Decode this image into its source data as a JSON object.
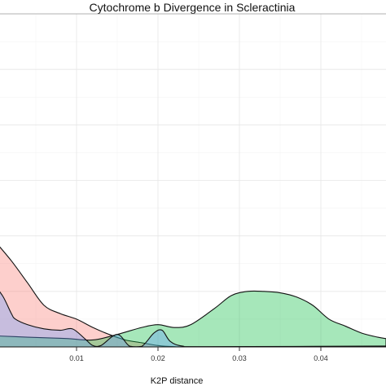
{
  "chart_data": {
    "type": "area",
    "title": "Cytochrome b Divergence in Scleractinia",
    "xlabel": "K2P distance",
    "ylabel": "",
    "xlim": [
      0.0,
      0.048
    ],
    "ylim": [
      0,
      120
    ],
    "x_ticks": [
      0.01,
      0.02,
      0.03,
      0.04
    ],
    "x_tick_labels": [
      "0.01",
      "0.02",
      "0.03",
      "0.04"
    ],
    "y_ticks": [
      0,
      20,
      40,
      60,
      80,
      100
    ],
    "grid": true,
    "legend": "none",
    "series": [
      {
        "color": "#f8766d",
        "points": [
          [
            0.0,
            38
          ],
          [
            0.002,
            31
          ],
          [
            0.004,
            23
          ],
          [
            0.006,
            15
          ],
          [
            0.008,
            12
          ],
          [
            0.01,
            10
          ],
          [
            0.012,
            7
          ],
          [
            0.014,
            4.5
          ],
          [
            0.016,
            2.5
          ],
          [
            0.018,
            1.5
          ],
          [
            0.02,
            0.5
          ],
          [
            0.022,
            0.1
          ],
          [
            0.025,
            0
          ],
          [
            0.048,
            0
          ]
        ]
      },
      {
        "color": "#00ba38",
        "points": [
          [
            0.0,
            4
          ],
          [
            0.004,
            3.5
          ],
          [
            0.007,
            3.2
          ],
          [
            0.009,
            3
          ],
          [
            0.012,
            2.5
          ],
          [
            0.015,
            4.5
          ],
          [
            0.018,
            7
          ],
          [
            0.02,
            8
          ],
          [
            0.022,
            7
          ],
          [
            0.024,
            8
          ],
          [
            0.027,
            14
          ],
          [
            0.029,
            18.5
          ],
          [
            0.031,
            20
          ],
          [
            0.033,
            20
          ],
          [
            0.035,
            19.5
          ],
          [
            0.037,
            18
          ],
          [
            0.039,
            15
          ],
          [
            0.041,
            10
          ],
          [
            0.043,
            7.5
          ],
          [
            0.045,
            5
          ],
          [
            0.047,
            3.5
          ],
          [
            0.048,
            3
          ]
        ]
      },
      {
        "color": "#619cff",
        "points": [
          [
            0.0,
            22
          ],
          [
            0.001,
            18
          ],
          [
            0.002,
            12
          ],
          [
            0.0025,
            10
          ],
          [
            0.004,
            8
          ],
          [
            0.006,
            6.5
          ],
          [
            0.008,
            6
          ],
          [
            0.0095,
            6.5
          ],
          [
            0.011,
            3
          ],
          [
            0.012,
            0.5
          ],
          [
            0.013,
            0.5
          ],
          [
            0.015,
            4.5
          ],
          [
            0.0165,
            0.3
          ],
          [
            0.018,
            0.2
          ],
          [
            0.0195,
            5
          ],
          [
            0.0205,
            6
          ],
          [
            0.0215,
            2
          ],
          [
            0.023,
            0.3
          ],
          [
            0.026,
            0.1
          ],
          [
            0.048,
            0.3
          ]
        ]
      }
    ]
  }
}
